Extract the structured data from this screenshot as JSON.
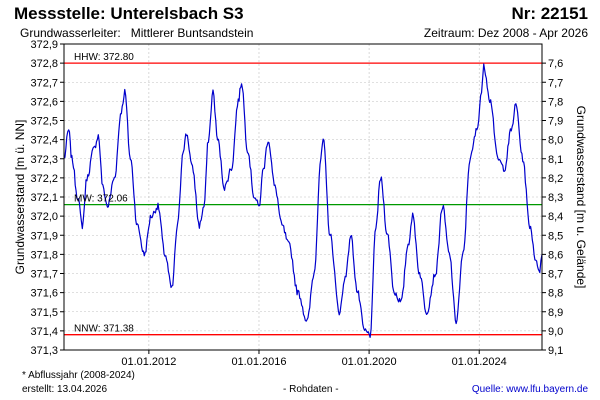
{
  "header": {
    "title": "Messstelle: Unterelsbach S3",
    "id_label": "Nr: 22151",
    "aquifer_label": "Grundwasserleiter:",
    "aquifer_value": "Mittlerer Buntsandstein",
    "period": "Zeitraum: Dez 2008 - Apr 2026"
  },
  "footer": {
    "note": "* Abflussjahr (2008-2024)",
    "created": "erstellt:  13.04.2026",
    "data_kind": "- Rohdaten -",
    "source": "Quelle: www.lfu.bayern.de"
  },
  "colors": {
    "series": "#0000cc",
    "hhw": "#ff0000",
    "nnw": "#ff0000",
    "mw": "#009900",
    "grid": "#c0c0c0"
  },
  "chart_data": {
    "type": "line",
    "title": "",
    "ylabel": "Grundwasserstand [m ü. NN]",
    "y2label": "Grundwasserstand [m u. Gelände]",
    "ylim": [
      371.3,
      372.9
    ],
    "y_ticks": [
      "372,9",
      "372,8",
      "372,7",
      "372,6",
      "372,5",
      "372,4",
      "372,3",
      "372,2",
      "372,1",
      "372,0",
      "371,9",
      "371,8",
      "371,7",
      "371,6",
      "371,5",
      "371,4",
      "371,3"
    ],
    "y_tick_values": [
      372.9,
      372.8,
      372.7,
      372.6,
      372.5,
      372.4,
      372.3,
      372.2,
      372.1,
      372.0,
      371.9,
      371.8,
      371.7,
      371.6,
      371.5,
      371.4,
      371.3
    ],
    "y2_ticks": [
      "7,6",
      "7,7",
      "7,8",
      "7,9",
      "8,0",
      "8,1",
      "8,2",
      "8,3",
      "8,4",
      "8,5",
      "8,6",
      "8,7",
      "8,8",
      "8,9",
      "9,0",
      "9,1"
    ],
    "y2_tick_depths": [
      7.6,
      7.7,
      7.8,
      7.9,
      8.0,
      8.1,
      8.2,
      8.3,
      8.4,
      8.5,
      8.6,
      8.7,
      8.8,
      8.9,
      9.0,
      9.1
    ],
    "y2_reference_level": 380.4,
    "xlim": [
      "2008-12-01",
      "2026-04-13"
    ],
    "x_ticks": [
      "01.01.2012",
      "01.01.2016",
      "01.01.2020",
      "01.01.2024"
    ],
    "x_tick_dates": [
      "2012-01-01",
      "2016-01-01",
      "2020-01-01",
      "2024-01-01"
    ],
    "grid": true,
    "reference_lines": [
      {
        "label": "HHW: 372.80",
        "value": 372.8,
        "color": "#ff0000"
      },
      {
        "label": "MW: 372.06",
        "value": 372.06,
        "color": "#009900"
      },
      {
        "label": "NNW: 371.38",
        "value": 371.38,
        "color": "#ff0000"
      }
    ],
    "series": [
      {
        "points": [
          [
            "2008-12-01",
            372.3
          ],
          [
            "2009-02-01",
            372.45
          ],
          [
            "2009-03-15",
            372.3
          ],
          [
            "2009-06-01",
            372.1
          ],
          [
            "2009-08-01",
            371.95
          ],
          [
            "2009-10-01",
            372.2
          ],
          [
            "2010-01-01",
            372.35
          ],
          [
            "2010-03-01",
            372.42
          ],
          [
            "2010-05-01",
            372.15
          ],
          [
            "2010-07-01",
            372.05
          ],
          [
            "2010-10-01",
            372.2
          ],
          [
            "2011-01-01",
            372.55
          ],
          [
            "2011-02-15",
            372.65
          ],
          [
            "2011-05-01",
            372.3
          ],
          [
            "2011-08-01",
            371.95
          ],
          [
            "2011-11-01",
            371.8
          ],
          [
            "2012-02-01",
            372.0
          ],
          [
            "2012-05-01",
            372.05
          ],
          [
            "2012-08-01",
            371.8
          ],
          [
            "2012-11-01",
            371.62
          ],
          [
            "2013-01-15",
            371.95
          ],
          [
            "2013-04-01",
            372.35
          ],
          [
            "2013-05-15",
            372.43
          ],
          [
            "2013-08-01",
            372.25
          ],
          [
            "2013-11-01",
            371.95
          ],
          [
            "2014-01-01",
            372.05
          ],
          [
            "2014-03-01",
            372.4
          ],
          [
            "2014-05-01",
            372.65
          ],
          [
            "2014-07-01",
            372.4
          ],
          [
            "2014-10-01",
            372.15
          ],
          [
            "2015-01-01",
            372.25
          ],
          [
            "2015-04-01",
            372.6
          ],
          [
            "2015-05-15",
            372.7
          ],
          [
            "2015-08-01",
            372.35
          ],
          [
            "2015-11-01",
            372.1
          ],
          [
            "2016-01-01",
            372.05
          ],
          [
            "2016-03-01",
            372.25
          ],
          [
            "2016-05-01",
            372.4
          ],
          [
            "2016-08-01",
            372.15
          ],
          [
            "2016-11-01",
            371.95
          ],
          [
            "2017-02-01",
            371.85
          ],
          [
            "2017-06-01",
            371.6
          ],
          [
            "2017-10-01",
            371.45
          ],
          [
            "2018-01-01",
            371.7
          ],
          [
            "2018-04-01",
            372.3
          ],
          [
            "2018-05-01",
            372.4
          ],
          [
            "2018-08-01",
            371.9
          ],
          [
            "2018-12-01",
            371.5
          ],
          [
            "2019-03-01",
            371.7
          ],
          [
            "2019-05-01",
            371.9
          ],
          [
            "2019-08-01",
            371.6
          ],
          [
            "2019-11-01",
            371.4
          ],
          [
            "2020-01-15",
            371.38
          ],
          [
            "2020-04-01",
            371.95
          ],
          [
            "2020-06-01",
            372.2
          ],
          [
            "2020-09-01",
            371.9
          ],
          [
            "2020-12-01",
            371.6
          ],
          [
            "2021-03-01",
            371.55
          ],
          [
            "2021-06-01",
            371.85
          ],
          [
            "2021-08-01",
            372.0
          ],
          [
            "2021-11-01",
            371.7
          ],
          [
            "2022-02-01",
            371.5
          ],
          [
            "2022-06-01",
            371.7
          ],
          [
            "2022-09-01",
            372.05
          ],
          [
            "2022-12-01",
            371.8
          ],
          [
            "2023-03-01",
            371.45
          ],
          [
            "2023-06-01",
            371.8
          ],
          [
            "2023-09-01",
            372.3
          ],
          [
            "2023-12-01",
            372.45
          ],
          [
            "2024-02-01",
            372.65
          ],
          [
            "2024-03-01",
            372.78
          ],
          [
            "2024-06-01",
            372.6
          ],
          [
            "2024-09-01",
            372.3
          ],
          [
            "2024-12-01",
            372.25
          ],
          [
            "2025-03-01",
            372.45
          ],
          [
            "2025-05-01",
            372.58
          ],
          [
            "2025-08-01",
            372.3
          ],
          [
            "2025-11-01",
            371.95
          ],
          [
            "2026-02-01",
            371.75
          ],
          [
            "2026-03-15",
            371.72
          ],
          [
            "2026-04-13",
            371.8
          ]
        ]
      }
    ]
  }
}
